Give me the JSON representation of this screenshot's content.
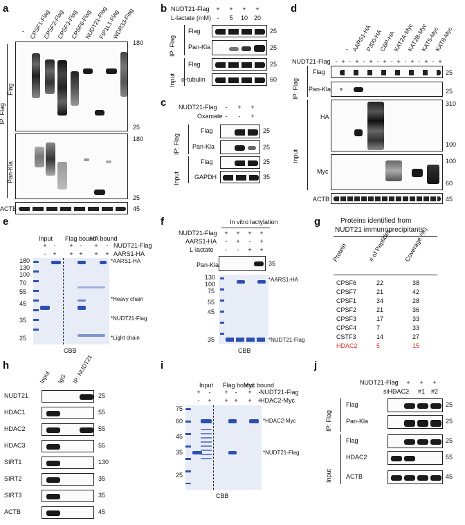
{
  "figure": {
    "panel_letters": {
      "a": "a",
      "b": "b",
      "c": "c",
      "d": "d",
      "e": "e",
      "f": "f",
      "g": "g",
      "h": "h",
      "i": "i",
      "j": "j"
    },
    "panel_a": {
      "lanes": [
        "-",
        "CPSF1-Flag",
        "CPSF2-Flag",
        "CPSF3-Flag",
        "CPSF6-Flag",
        "NUDT21-Flag",
        "FIP1L1-Flag",
        "WDR33-Flag"
      ],
      "ip_label": "IP: Flag",
      "flag_label": "Flag",
      "pankla_label": "Pan-Kla",
      "actb_label": "ACTB",
      "mw_flag_top": "180",
      "mw_flag_bottom": "25",
      "mw_kla_top": "180",
      "mw_kla_bottom": "25",
      "mw_actb": "45"
    },
    "panel_b": {
      "row1_label": "NUDT21-Flag",
      "row1": [
        "+",
        "+",
        "+",
        "+"
      ],
      "row2_label": "L-lactate (mM)",
      "row2": [
        "-",
        "5",
        "10",
        "20"
      ],
      "ip_label": "IP: Flag",
      "input_label": "Input",
      "blots": [
        "Flag",
        "Pan-Kla",
        "Flag",
        "α-tubulin"
      ],
      "mw": [
        "25",
        "25",
        "25",
        "60"
      ]
    },
    "panel_c": {
      "row1_label": "NUDT21-Flag",
      "row1": [
        "-",
        "+",
        "+"
      ],
      "row2_label": "Oxamate",
      "row2": [
        "-",
        "-",
        "+"
      ],
      "ip_label": "IP: Flag",
      "input_label": "Input",
      "blots": [
        "Flag",
        "Pan-Kla",
        "Flag",
        "GAPDH"
      ],
      "mw": [
        "25",
        "25",
        "25",
        "35"
      ]
    },
    "panel_d": {
      "lanes": [
        "-",
        "AARS1-HA",
        "P300-HA",
        "CBP-HA",
        "KAT2A-Myc",
        "KAT2B-Myc",
        "KAT5-Myc",
        "KAT8-Myc"
      ],
      "row1_label": "NUDT21-Flag",
      "row1": [
        "-",
        "+",
        "-",
        "+",
        "-",
        "+",
        "-",
        "+",
        "-",
        "+",
        "-",
        "+",
        "-",
        "+",
        "-",
        "+"
      ],
      "ip_label": "IP: Flag",
      "input_label": "Input",
      "blots": [
        "Flag",
        "Pan-Kla",
        "HA",
        "Myc",
        "ACTB"
      ],
      "mw_flag": "25",
      "mw_kla": "25",
      "mw_ha": [
        "310",
        "100"
      ],
      "mw_myc": [
        "100",
        "60"
      ],
      "mw_actb": "45"
    },
    "panel_e": {
      "groups": [
        "Input",
        "Flag bound",
        "HA bound"
      ],
      "row1_label": "NUDT21-Flag",
      "row1": [
        "+",
        "-",
        "+",
        "-",
        "+",
        "-"
      ],
      "row2_label": "AARS1-HA",
      "row2": [
        "-",
        "+",
        "+",
        "+",
        "+",
        "+"
      ],
      "mw": [
        "180",
        "130",
        "100",
        "70",
        "55",
        "45",
        "35",
        "25"
      ],
      "annotations": [
        "*AARS1-HA",
        "*Heavy chain",
        "*NUDT21-Flag",
        "*Light chain"
      ],
      "stain": "CBB"
    },
    "panel_f": {
      "header": "In vitro lactylation",
      "row1_label": "NUDT21-Flag",
      "row1": [
        "+",
        "+",
        "+",
        "+"
      ],
      "row2_label": "AARS1-HA",
      "row2": [
        "-",
        "+",
        "-",
        "+"
      ],
      "row3_label": "L-lactate",
      "row3": [
        "-",
        "-",
        "+",
        "+"
      ],
      "blot": "Pan-Kla",
      "blot_mw": "35",
      "mw": [
        "130",
        "100",
        "75",
        "55",
        "45",
        "35"
      ],
      "annotations": [
        "*AARS1-HA",
        "*NUDT21-Flag"
      ],
      "stain": "CBB"
    },
    "panel_g": {
      "title_line1": "Proteins identified from",
      "title_line2": "NUDT21 immunoprecipitants",
      "columns": [
        "Protein",
        "# of Peptides",
        "Coverage (%)"
      ],
      "rows": [
        [
          "CPSF6",
          "22",
          "38"
        ],
        [
          "CPSF7",
          "21",
          "42"
        ],
        [
          "CPSF1",
          "34",
          "28"
        ],
        [
          "CPSF2",
          "21",
          "36"
        ],
        [
          "CPSF3",
          "17",
          "33"
        ],
        [
          "CPSF4",
          "7",
          "33"
        ],
        [
          "CSTF3",
          "14",
          "27"
        ],
        [
          "HDAC2",
          "5",
          "15"
        ]
      ],
      "highlight_color": "#d9342b"
    },
    "panel_h": {
      "lanes": [
        "Input",
        "IgG",
        "IP: NUDT21"
      ],
      "blots": [
        "NUDT21",
        "HDAC1",
        "HDAC2",
        "HDAC3",
        "SIRT1",
        "SIRT2",
        "SIRT3",
        "ACTB"
      ],
      "mw": [
        "25",
        "55",
        "55",
        "55",
        "130",
        "35",
        "35",
        "45"
      ]
    },
    "panel_i": {
      "groups": [
        "Input",
        "Flag bound",
        "Myc bound"
      ],
      "row1_label": "NUDT21-Flag",
      "row1": [
        "+",
        "-",
        "+",
        "-",
        "+",
        "-"
      ],
      "row2_label": "HDAC2-Myc",
      "row2": [
        "-",
        "+",
        "+",
        "+",
        "+",
        "+"
      ],
      "mw": [
        "75",
        "60",
        "45",
        "35",
        "25"
      ],
      "annotations": [
        "*HDAC2-Myc",
        "*NUDT21-Flag"
      ],
      "stain": "CBB"
    },
    "panel_j": {
      "row1_label": "NUDT21-Flag",
      "row1": [
        "-",
        "+",
        "+",
        "+"
      ],
      "row2_label": "siHDAC2",
      "row2": [
        "-",
        "-",
        "#1",
        "#2"
      ],
      "ip_label": "IP: Flag",
      "input_label": "Input",
      "blots": [
        "Flag",
        "Pan-Kla",
        "Flag",
        "HDAC2",
        "ACTB"
      ],
      "mw": [
        "25",
        "25",
        "25",
        "55",
        "45"
      ]
    }
  }
}
